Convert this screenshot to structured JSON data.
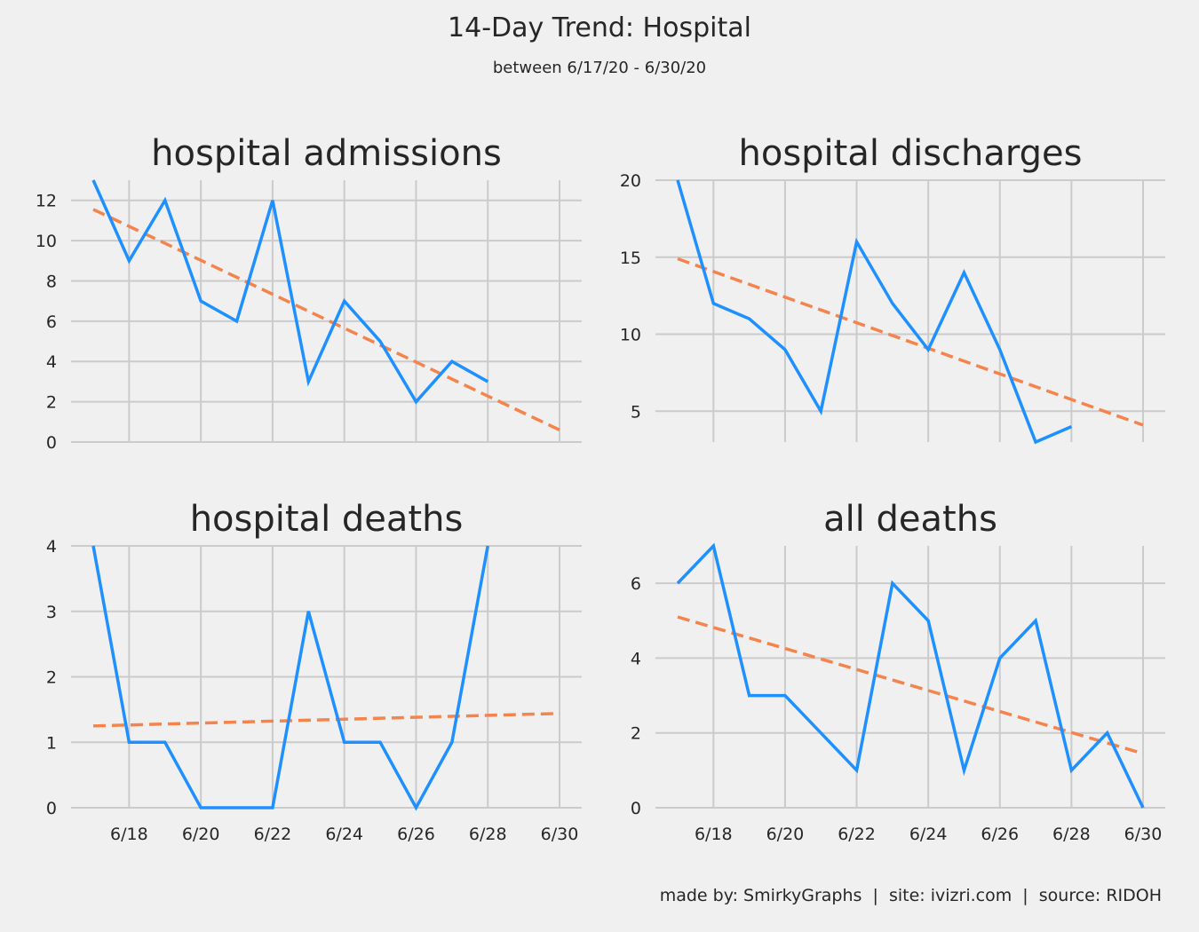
{
  "page": {
    "title": "14-Day Trend: Hospital",
    "subtitle": "between 6/17/20 - 6/30/20",
    "credit": "made by: SmirkyGraphs  |  site: ivizri.com  |  source: RIDOH"
  },
  "style": {
    "background": "#f0f0f0",
    "grid_color": "#cbcbcb",
    "line_color": "#1e90ff",
    "trend_color": "#f4844c",
    "text_color": "#262626"
  },
  "chart_data": [
    {
      "type": "line",
      "title": "hospital admissions",
      "x": [
        "6/17",
        "6/18",
        "6/19",
        "6/20",
        "6/21",
        "6/22",
        "6/23",
        "6/24",
        "6/25",
        "6/26",
        "6/27",
        "6/28"
      ],
      "series": [
        {
          "values": [
            13,
            9,
            12,
            7,
            6,
            12,
            3,
            7,
            5,
            2,
            4,
            3
          ]
        }
      ],
      "trend": {
        "x_range": [
          "6/17",
          "6/30"
        ],
        "y_start": 11.55,
        "y_end": 0.6
      },
      "x_ticks": [
        "6/18",
        "6/20",
        "6/22",
        "6/24",
        "6/26",
        "6/28",
        "6/30"
      ],
      "y_ticks": [
        0,
        2,
        4,
        6,
        8,
        10,
        12
      ],
      "ylim": [
        0,
        13
      ],
      "show_x_labels": false,
      "grid": true
    },
    {
      "type": "line",
      "title": "hospital discharges",
      "x": [
        "6/17",
        "6/18",
        "6/19",
        "6/20",
        "6/21",
        "6/22",
        "6/23",
        "6/24",
        "6/25",
        "6/26",
        "6/27",
        "6/28"
      ],
      "series": [
        {
          "values": [
            20,
            12,
            11,
            9,
            5,
            16,
            12,
            9,
            14,
            9,
            3,
            4
          ]
        }
      ],
      "trend": {
        "x_range": [
          "6/17",
          "6/30"
        ],
        "y_start": 14.9,
        "y_end": 4.1
      },
      "x_ticks": [
        "6/18",
        "6/20",
        "6/22",
        "6/24",
        "6/26",
        "6/28",
        "6/30"
      ],
      "y_ticks": [
        5,
        10,
        15,
        20
      ],
      "ylim": [
        3,
        20
      ],
      "show_x_labels": false,
      "grid": true
    },
    {
      "type": "line",
      "title": "hospital deaths",
      "x": [
        "6/17",
        "6/18",
        "6/19",
        "6/20",
        "6/21",
        "6/22",
        "6/23",
        "6/24",
        "6/25",
        "6/26",
        "6/27",
        "6/28"
      ],
      "series": [
        {
          "values": [
            4,
            1,
            1,
            0,
            0,
            0,
            3,
            1,
            1,
            0,
            1,
            4
          ]
        }
      ],
      "trend": {
        "x_range": [
          "6/17",
          "6/30"
        ],
        "y_start": 1.25,
        "y_end": 1.44
      },
      "x_ticks": [
        "6/18",
        "6/20",
        "6/22",
        "6/24",
        "6/26",
        "6/28",
        "6/30"
      ],
      "y_ticks": [
        0,
        1,
        2,
        3,
        4
      ],
      "ylim": [
        0,
        4
      ],
      "show_x_labels": true,
      "grid": true
    },
    {
      "type": "line",
      "title": "all deaths",
      "x": [
        "6/17",
        "6/18",
        "6/19",
        "6/20",
        "6/21",
        "6/22",
        "6/23",
        "6/24",
        "6/25",
        "6/26",
        "6/27",
        "6/28",
        "6/29",
        "6/30"
      ],
      "series": [
        {
          "values": [
            6,
            7,
            3,
            3,
            2,
            1,
            6,
            5,
            1,
            4,
            5,
            1,
            2,
            0
          ]
        }
      ],
      "trend": {
        "x_range": [
          "6/17",
          "6/30"
        ],
        "y_start": 5.1,
        "y_end": 1.45
      },
      "x_ticks": [
        "6/18",
        "6/20",
        "6/22",
        "6/24",
        "6/26",
        "6/28",
        "6/30"
      ],
      "y_ticks": [
        0,
        2,
        4,
        6
      ],
      "ylim": [
        0,
        7
      ],
      "show_x_labels": true,
      "grid": true
    }
  ]
}
